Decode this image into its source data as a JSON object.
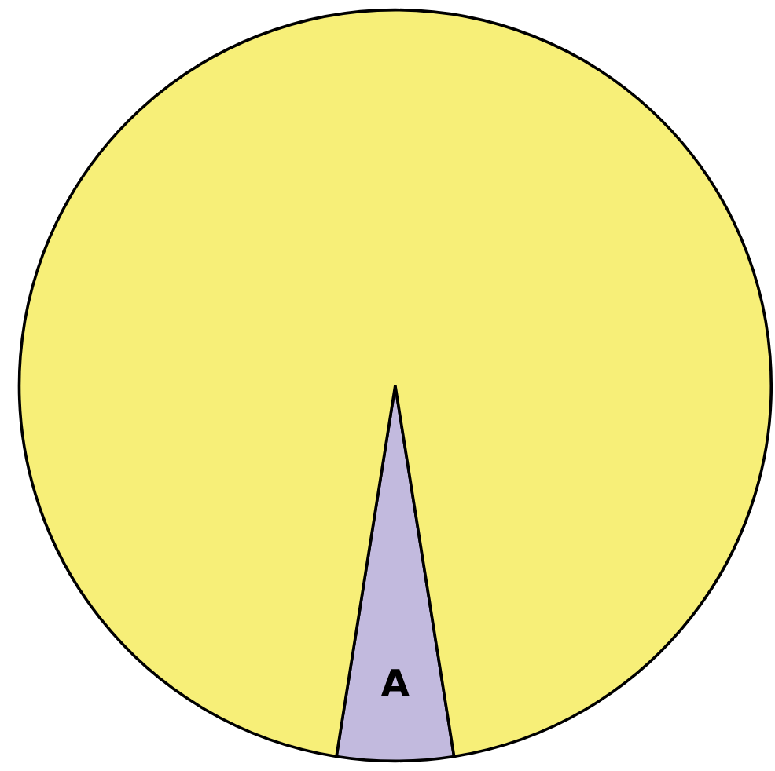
{
  "chart_data": {
    "type": "pie",
    "categories": [
      "A",
      null
    ],
    "values": [
      5,
      95
    ],
    "colors": [
      "#c2bade",
      "#f7ef78"
    ]
  }
}
